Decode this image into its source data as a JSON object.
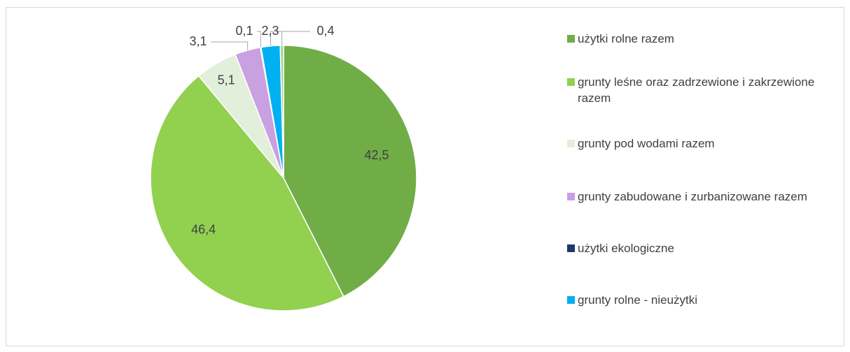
{
  "chart_data": {
    "type": "pie",
    "categories": [
      "użytki rolne razem",
      "grunty leśne oraz zadrzewione i zakrzewione razem",
      "grunty pod wodami razem",
      "grunty zabudowane i zurbanizowane razem",
      "użytki ekologiczne",
      "grunty rolne - nieużytki",
      null
    ],
    "values": [
      42.5,
      46.4,
      5.1,
      3.1,
      0.1,
      2.3,
      0.4
    ],
    "value_labels": [
      "42,5",
      "46,4",
      "5,1",
      "3,1",
      "0,1",
      "2,3",
      "0,4"
    ],
    "colors": [
      "#70ad47",
      "#92d050",
      "#e2efda",
      "#c9a0e0",
      "#1f3864",
      "#00b0f0",
      "#a9d18e"
    ],
    "legend": "right"
  }
}
